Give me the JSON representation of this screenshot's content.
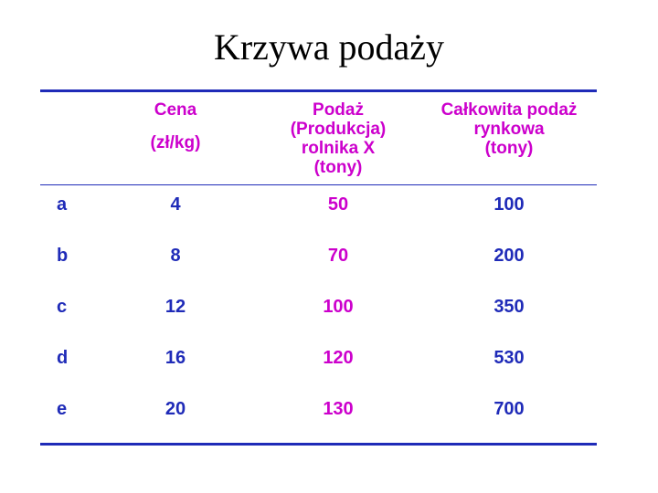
{
  "title": "Krzywa podaży",
  "headers": {
    "price": [
      "Cena",
      "(zł/kg)"
    ],
    "farm_supply": [
      "Podaż",
      "(Produkcja)",
      "rolnika X",
      "(tony)"
    ],
    "total_supply": [
      "Całkowita podaż",
      "rynkowa",
      "(tony)"
    ]
  },
  "rows": [
    {
      "label": "a",
      "price": "4",
      "farm": "50",
      "total": "100"
    },
    {
      "label": "b",
      "price": "8",
      "farm": "70",
      "total": "200"
    },
    {
      "label": "c",
      "price": "12",
      "farm": "100",
      "total": "350"
    },
    {
      "label": "d",
      "price": "16",
      "farm": "120",
      "total": "530"
    },
    {
      "label": "e",
      "price": "20",
      "farm": "130",
      "total": "700"
    }
  ],
  "colors": {
    "rule": "#1f2bb8",
    "header_text": "#cc00cc",
    "body_text": "#1f2bb8",
    "farm_column_text": "#cc00cc"
  }
}
